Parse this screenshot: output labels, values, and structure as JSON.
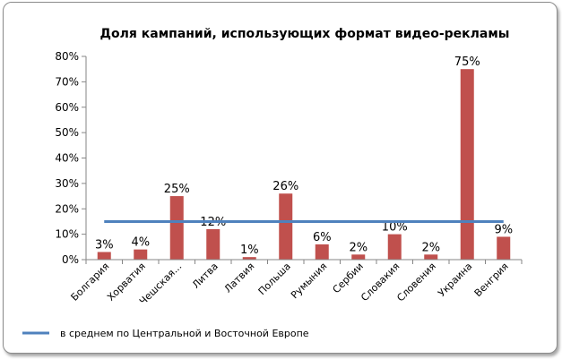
{
  "chart_data": {
    "type": "bar",
    "title": "Доля кампаний, использующих формат видео-рекламы",
    "categories": [
      "Болгария",
      "Хорватия",
      "Чешская...",
      "Литва",
      "Латвия",
      "Польша",
      "Румыния",
      "Сербии",
      "Словакия",
      "Словения",
      "Украина",
      "Венгрия"
    ],
    "values": [
      3,
      4,
      25,
      12,
      1,
      26,
      6,
      2,
      10,
      2,
      75,
      9
    ],
    "data_labels": [
      "3%",
      "4%",
      "25%",
      "12%",
      "1%",
      "26%",
      "6%",
      "2%",
      "10%",
      "2%",
      "75%",
      "9%"
    ],
    "yticks": [
      "0%",
      "10%",
      "20%",
      "30%",
      "40%",
      "50%",
      "60%",
      "70%",
      "80%"
    ],
    "ylim": [
      0,
      80
    ],
    "bar_color": "#c0504d",
    "reference_line": {
      "name": "в среднем по Центральной и Восточной Европе",
      "value": 15,
      "color": "#4f81bd"
    },
    "xlabel": "",
    "ylabel": "",
    "grid": false,
    "legend_position": "bottom-left"
  }
}
